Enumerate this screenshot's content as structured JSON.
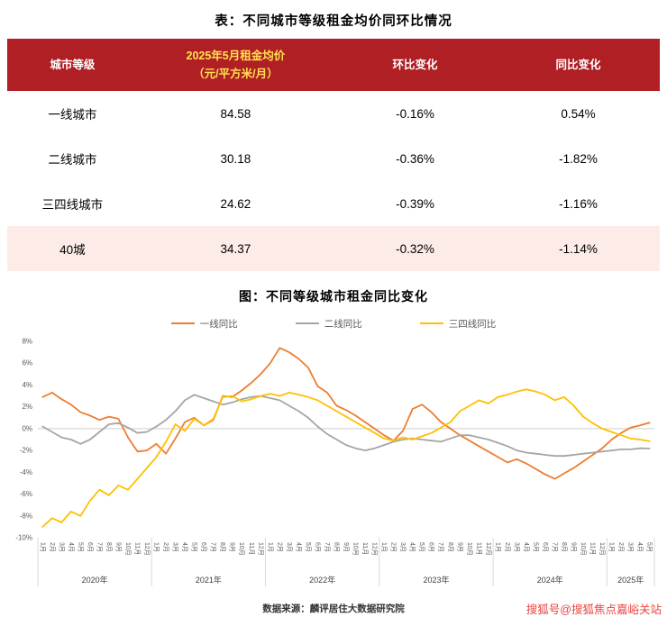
{
  "page": {
    "table_title": "表：不同城市等级租金均价同环比情况",
    "source": "数据来源：麟评居住大数据研究院",
    "watermark": "搜狐号@搜狐焦点嘉峪关站"
  },
  "colors": {
    "header_bg": "#b01f24",
    "header_text": "#ffffff",
    "price_header_text": "#ffe14d",
    "highlight_row_bg": "#fcebe7",
    "watermark_red": "#e8433e",
    "zero_line": "#cfcfcf",
    "axis_text": "#595959"
  },
  "table": {
    "col_tier": "城市等级",
    "col_price_line1": "2025年5月租金均价",
    "col_price_line2": "（元/平方米/月）",
    "col_mom": "环比变化",
    "col_yoy": "同比变化",
    "rows": [
      {
        "tier": "一线城市",
        "price": "84.58",
        "mom": "-0.16%",
        "yoy": "0.54%"
      },
      {
        "tier": "二线城市",
        "price": "30.18",
        "mom": "-0.36%",
        "yoy": "-1.82%"
      },
      {
        "tier": "三四线城市",
        "price": "24.62",
        "mom": "-0.39%",
        "yoy": "-1.16%"
      },
      {
        "tier": "40城",
        "price": "34.37",
        "mom": "-0.32%",
        "yoy": "-1.14%"
      }
    ]
  },
  "chart_data": {
    "type": "line",
    "title": "图：不同等级城市租金同比变化",
    "ylim": [
      -10,
      8
    ],
    "yticks": [
      8,
      6,
      4,
      2,
      0,
      -2,
      -4,
      -6,
      -8,
      -10
    ],
    "grid": "zero-line-only",
    "legend_position": "top",
    "year_labels": [
      "2020年",
      "2021年",
      "2022年",
      "2023年",
      "2024年",
      "2025年"
    ],
    "year_month_counts": [
      12,
      12,
      12,
      12,
      12,
      5
    ],
    "x_labels": [
      "1月",
      "2月",
      "3月",
      "4月",
      "5月",
      "6月",
      "7月",
      "8月",
      "9月",
      "10月",
      "11月",
      "12月",
      "1月",
      "2月",
      "3月",
      "4月",
      "5月",
      "6月",
      "7月",
      "8月",
      "9月",
      "10月",
      "11月",
      "12月",
      "1月",
      "2月",
      "3月",
      "4月",
      "5月",
      "6月",
      "7月",
      "8月",
      "9月",
      "10月",
      "11月",
      "12月",
      "1月",
      "2月",
      "3月",
      "4月",
      "5月",
      "6月",
      "7月",
      "8月",
      "9月",
      "10月",
      "11月",
      "12月",
      "1月",
      "2月",
      "3月",
      "4月",
      "5月",
      "6月",
      "7月",
      "8月",
      "9月",
      "10月",
      "11月",
      "12月",
      "1月",
      "2月",
      "3月",
      "4月",
      "5月"
    ],
    "series": [
      {
        "name": "一线同比",
        "color": "#ED7D31",
        "values": [
          2.9,
          3.3,
          2.7,
          2.2,
          1.5,
          1.2,
          0.8,
          1.1,
          0.9,
          -0.8,
          -2.1,
          -2.0,
          -1.4,
          -2.3,
          -0.9,
          0.6,
          1.0,
          0.3,
          0.8,
          3.0,
          2.9,
          3.5,
          4.2,
          5.0,
          6.0,
          7.4,
          7.0,
          6.4,
          5.6,
          3.9,
          3.3,
          2.1,
          1.7,
          1.2,
          0.6,
          0.0,
          -0.6,
          -1.1,
          -0.2,
          1.8,
          2.2,
          1.5,
          0.6,
          0.0,
          -0.6,
          -1.1,
          -1.6,
          -2.1,
          -2.6,
          -3.1,
          -2.8,
          -3.2,
          -3.7,
          -4.2,
          -4.6,
          -4.1,
          -3.6,
          -3.0,
          -2.4,
          -1.8,
          -1.0,
          -0.4,
          0.1,
          0.3,
          0.54
        ]
      },
      {
        "name": "二线同比",
        "color": "#A5A5A5",
        "values": [
          0.2,
          -0.3,
          -0.8,
          -1.0,
          -1.4,
          -1.0,
          -0.3,
          0.4,
          0.5,
          0.1,
          -0.4,
          -0.3,
          0.2,
          0.8,
          1.6,
          2.6,
          3.1,
          2.8,
          2.5,
          2.2,
          2.4,
          2.7,
          2.9,
          3.0,
          2.8,
          2.6,
          2.1,
          1.6,
          1.0,
          0.2,
          -0.5,
          -1.0,
          -1.5,
          -1.8,
          -2.0,
          -1.8,
          -1.5,
          -1.2,
          -1.0,
          -0.9,
          -1.0,
          -1.1,
          -1.2,
          -0.9,
          -0.6,
          -0.6,
          -0.8,
          -1.0,
          -1.3,
          -1.6,
          -2.0,
          -2.2,
          -2.3,
          -2.4,
          -2.5,
          -2.5,
          -2.4,
          -2.3,
          -2.2,
          -2.1,
          -2.0,
          -1.9,
          -1.9,
          -1.8,
          -1.82
        ]
      },
      {
        "name": "三四线同比",
        "color": "#FFC000",
        "values": [
          -9.0,
          -8.2,
          -8.6,
          -7.6,
          -8.0,
          -6.6,
          -5.6,
          -6.1,
          -5.2,
          -5.6,
          -4.6,
          -3.6,
          -2.6,
          -1.2,
          0.4,
          -0.2,
          0.9,
          0.3,
          0.9,
          2.9,
          3.0,
          2.5,
          2.7,
          3.0,
          3.2,
          3.0,
          3.3,
          3.1,
          2.9,
          2.6,
          2.1,
          1.6,
          1.1,
          0.6,
          0.1,
          -0.4,
          -0.9,
          -1.1,
          -0.8,
          -1.0,
          -0.7,
          -0.4,
          0.1,
          0.6,
          1.6,
          2.1,
          2.6,
          2.3,
          2.9,
          3.1,
          3.4,
          3.6,
          3.4,
          3.1,
          2.6,
          2.9,
          2.1,
          1.1,
          0.5,
          0.0,
          -0.3,
          -0.6,
          -0.9,
          -1.0,
          -1.16
        ]
      }
    ]
  }
}
